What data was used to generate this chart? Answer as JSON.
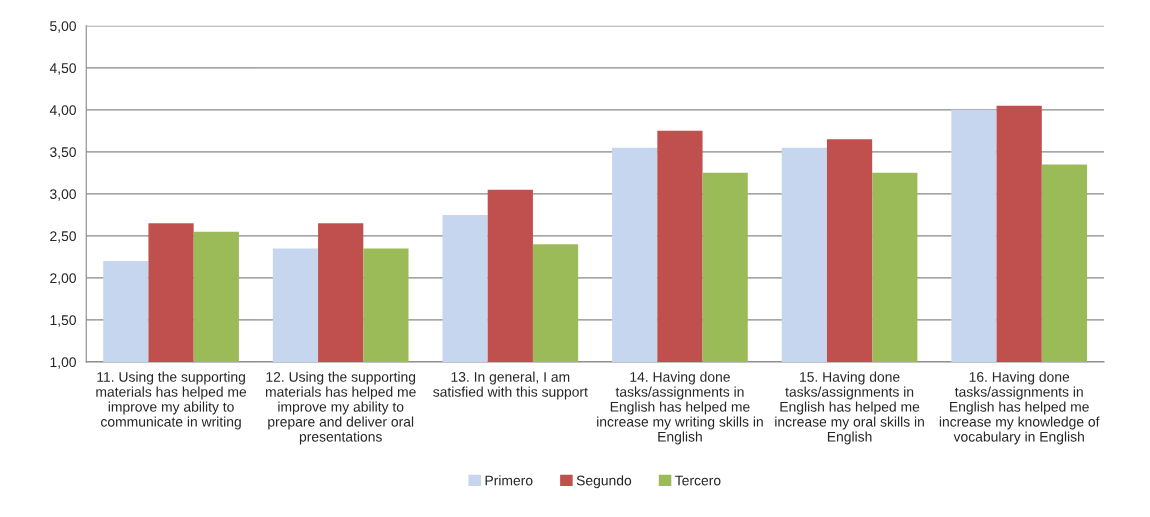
{
  "chart_data": {
    "type": "bar",
    "categories": [
      "11. Using the supporting\nmaterials has helped me\nimprove my ability to\ncommunicate in writing",
      "12. Using the supporting\nmaterials has helped me\nimprove my ability to\nprepare and deliver oral\npresentations",
      "13. In general, I am\nsatisfied with this support",
      "14. Having done\ntasks/assignments in\nEnglish has helped me\nincrease my writing skills in\nEnglish",
      "15. Having done\ntasks/assignments in\nEnglish has helped me\nincrease my oral skills in\nEnglish",
      "16. Having done\ntasks/assignments in\nEnglish has helped me\nincrease my knowledge of\nvocabulary in English"
    ],
    "series": [
      {
        "name": "Primero",
        "color": "#c6d6ee",
        "values": [
          2.2,
          2.35,
          2.75,
          3.55,
          3.55,
          4.0
        ]
      },
      {
        "name": "Segundo",
        "color": "#c0504d",
        "values": [
          2.65,
          2.65,
          3.05,
          3.75,
          3.65,
          4.05
        ]
      },
      {
        "name": "Tercero",
        "color": "#9bbb59",
        "values": [
          2.55,
          2.35,
          2.4,
          3.25,
          3.25,
          3.35
        ]
      }
    ],
    "ylim": [
      1,
      5
    ],
    "yticks": [
      {
        "value": 1,
        "label": "1,00"
      },
      {
        "value": 1.5,
        "label": "1,50"
      },
      {
        "value": 2,
        "label": "2,00"
      },
      {
        "value": 2.5,
        "label": "2,50"
      },
      {
        "value": 3,
        "label": "3,00"
      },
      {
        "value": 3.5,
        "label": "3,50"
      },
      {
        "value": 4,
        "label": "4,00"
      },
      {
        "value": 4.5,
        "label": "4,50"
      },
      {
        "value": 5,
        "label": "5,00"
      }
    ],
    "grid": "y",
    "legend": "bottom"
  }
}
